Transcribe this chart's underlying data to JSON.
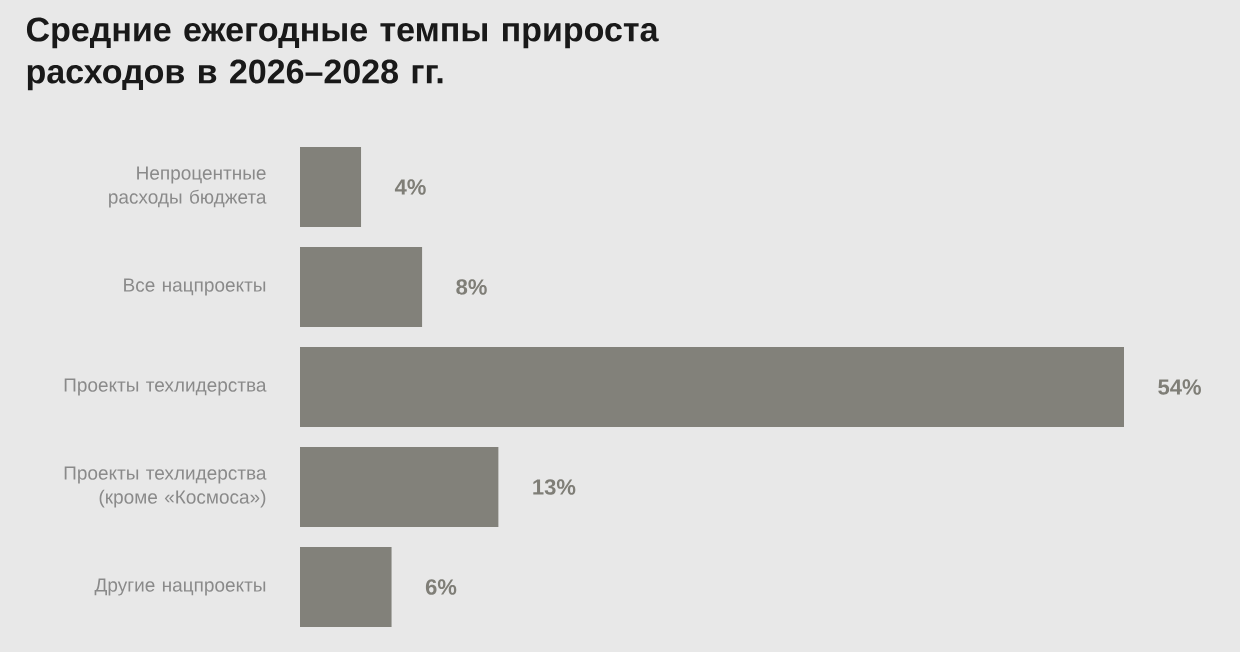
{
  "chart_data": {
    "type": "bar",
    "orientation": "horizontal",
    "title": "Средние ежегодные темпы прироста расходов в 2026–2028 гг.",
    "categories": [
      "Непроцентные расходы бюджета",
      "Все нацпроекты",
      "Проекты техлидерства",
      "Проекты техлидерства (кроме «Космоса»)",
      "Другие нацпроекты"
    ],
    "values": [
      4,
      8,
      54,
      13,
      6
    ],
    "value_labels": [
      "4%",
      "8%",
      "54%",
      "13%",
      "6%"
    ],
    "color": "#82817a"
  }
}
